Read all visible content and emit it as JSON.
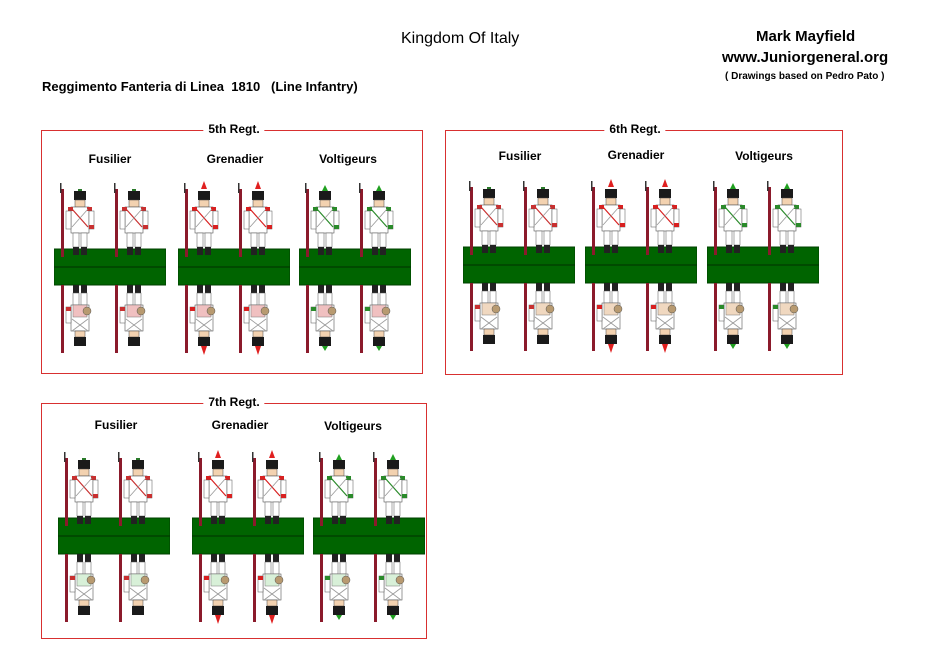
{
  "header": {
    "title": "Kingdom Of Italy",
    "author": "Mark Mayfield",
    "website": "www.Juniorgeneral.org",
    "credit": "( Drawings based on Pedro Pato )",
    "subtitle": "Reggimento Fanteria di Linea  1810   (Line Infantry)"
  },
  "regiments": [
    {
      "title": "5th Regt.",
      "columns": [
        {
          "label": "Fusilier",
          "type": "fusilier"
        },
        {
          "label": "Grenadier",
          "type": "grenadier"
        },
        {
          "label": "Voltigeurs",
          "type": "voltigeur"
        }
      ],
      "facing": "#ffffff",
      "facing_back": "#f0c0c0"
    },
    {
      "title": "6th Regt.",
      "columns": [
        {
          "label": "Fusilier",
          "type": "fusilier"
        },
        {
          "label": "Grenadier",
          "type": "grenadier"
        },
        {
          "label": "Voltigeurs",
          "type": "voltigeur"
        }
      ],
      "facing": "#ffffff",
      "facing_back": "#f0d8c0"
    },
    {
      "title": "7th Regt.",
      "columns": [
        {
          "label": "Fusilier",
          "type": "fusilier"
        },
        {
          "label": "Grenadier",
          "type": "grenadier"
        },
        {
          "label": "Voltigeurs",
          "type": "voltigeur"
        }
      ],
      "facing": "#ffffff",
      "facing_back": "#d8f0d8"
    }
  ],
  "colors": {
    "base": "#006400",
    "border": "#d83030",
    "coat": "#ffffff",
    "musket": "#8b1a2b",
    "shako": "#1a1a1a",
    "plume_grenadier": "#e02020",
    "plume_voltigeur": "#20a020",
    "cuff_grenadier": "#d82020",
    "cuff_voltigeur": "#2a8a2a",
    "cuff_fusilier": "#c83030"
  }
}
